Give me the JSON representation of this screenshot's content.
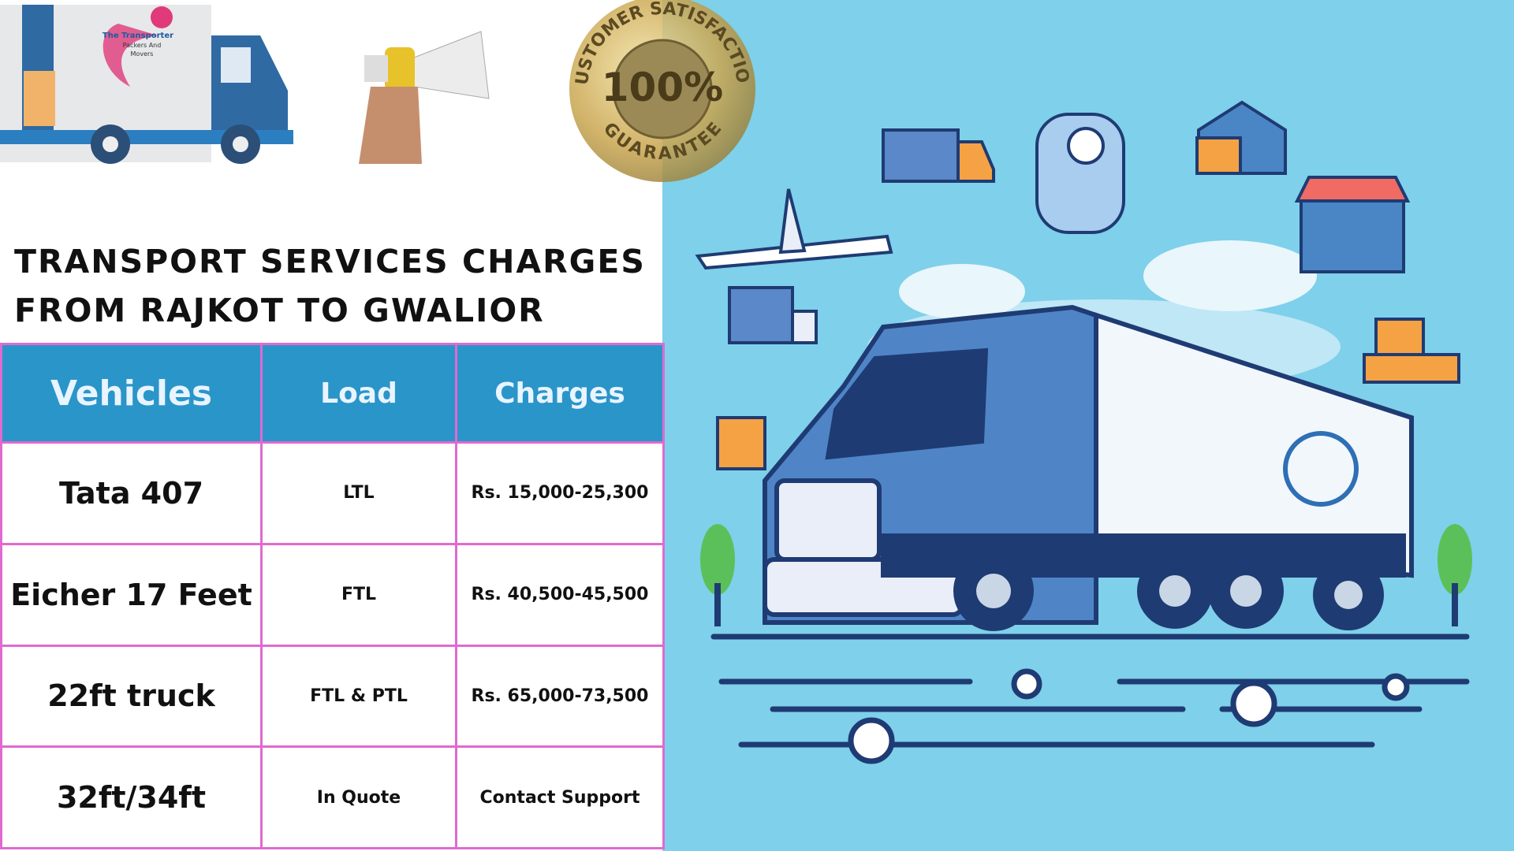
{
  "logo": {
    "lines": [
      "The Transporter",
      "Packers And",
      "Movers"
    ]
  },
  "badge": {
    "top": "CUSTOMER SATISFACTION",
    "center": "100%",
    "bottom": "GUARANTEE"
  },
  "title": [
    "TRANSPORT SERVICES CHARGES",
    "FROM RAJKOT TO GWALIOR"
  ],
  "table": {
    "headers": [
      "Vehicles",
      "Load",
      "Charges"
    ],
    "rows": [
      [
        "Tata 407",
        "LTL",
        "Rs. 15,000-25,300"
      ],
      [
        "Eicher 17 Feet",
        "FTL",
        "Rs. 40,500-45,500"
      ],
      [
        "22ft truck",
        "FTL & PTL",
        "Rs. 65,000-73,500"
      ],
      [
        "32ft/34ft",
        "In Quote",
        "Contact Support"
      ]
    ]
  }
}
